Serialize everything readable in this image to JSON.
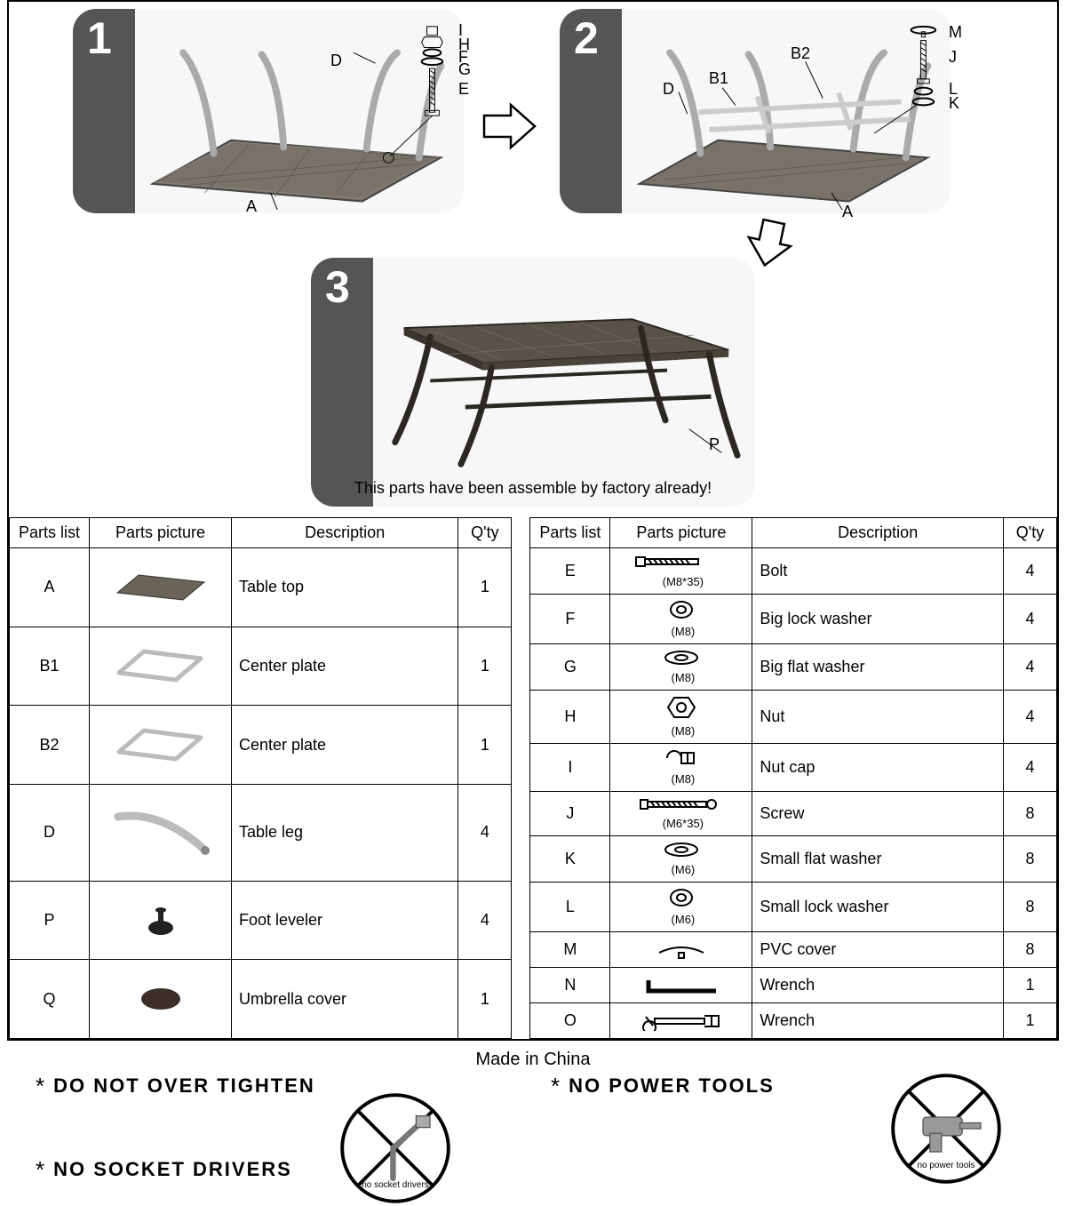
{
  "colors": {
    "border": "#000000",
    "tab": "#555555",
    "panel": "#f7f7f7",
    "tabletop": "#6b6258",
    "metal": "#bfbfbf",
    "dark": "#3b352f"
  },
  "steps": {
    "s1": {
      "num": "1",
      "labels": {
        "A": "A",
        "D": "D",
        "E": "E",
        "F": "F",
        "G": "G",
        "H": "H",
        "I": "I"
      }
    },
    "s2": {
      "num": "2",
      "labels": {
        "A": "A",
        "D": "D",
        "B1": "B1",
        "B2": "B2",
        "J": "J",
        "K": "K",
        "L": "L",
        "M": "M"
      }
    },
    "s3": {
      "num": "3",
      "note": "This parts have been assemble by factory already!",
      "labels": {
        "P": "P"
      }
    }
  },
  "headers": {
    "parts_list": "Parts list",
    "picture": "Parts  picture",
    "description": "Description",
    "qty": "Q'ty"
  },
  "left_parts": [
    {
      "id": "A",
      "desc": "Table top",
      "qty": "1",
      "icon": "tabletop"
    },
    {
      "id": "B1",
      "desc": "Center plate",
      "qty": "1",
      "icon": "frame"
    },
    {
      "id": "B2",
      "desc": "Center plate",
      "qty": "1",
      "icon": "frame"
    },
    {
      "id": "D",
      "desc": "Table leg",
      "qty": "4",
      "icon": "leg",
      "tall": true
    },
    {
      "id": "P",
      "desc": "Foot leveler",
      "qty": "4",
      "icon": "leveler"
    },
    {
      "id": "Q",
      "desc": "Umbrella cover",
      "qty": "1",
      "icon": "oval"
    }
  ],
  "right_parts": [
    {
      "id": "E",
      "spec": "(M8*35)",
      "desc": "Bolt",
      "qty": "4",
      "icon": "bolt"
    },
    {
      "id": "F",
      "spec": "(M8)",
      "desc": "Big lock washer",
      "qty": "4",
      "icon": "ring"
    },
    {
      "id": "G",
      "spec": "(M8)",
      "desc": "Big flat washer",
      "qty": "4",
      "icon": "flatwasher"
    },
    {
      "id": "H",
      "spec": "(M8)",
      "desc": "Nut",
      "qty": "4",
      "icon": "nut"
    },
    {
      "id": "I",
      "spec": "(M8)",
      "desc": "Nut cap",
      "qty": "4",
      "icon": "nutcap"
    },
    {
      "id": "J",
      "spec": "(M6*35)",
      "desc": "Screw",
      "qty": "8",
      "icon": "screw"
    },
    {
      "id": "K",
      "spec": "(M6)",
      "desc": "Small flat washer",
      "qty": "8",
      "icon": "flatwasher"
    },
    {
      "id": "L",
      "spec": "(M6)",
      "desc": "Small lock washer",
      "qty": "8",
      "icon": "ring"
    },
    {
      "id": "M",
      "spec": "",
      "desc": "PVC cover",
      "qty": "8",
      "icon": "pvccover"
    },
    {
      "id": "N",
      "spec": "",
      "desc": "Wrench",
      "qty": "1",
      "icon": "allen"
    },
    {
      "id": "O",
      "spec": "",
      "desc": "Wrench",
      "qty": "1",
      "icon": "spanner"
    }
  ],
  "footer": {
    "made_in": "Made   in   China",
    "warn1": "DO  NOT  OVER  TIGHTEN",
    "warn2": "NO  POWER  TOOLS",
    "warn3": "NO  SOCKET  DRIVERS",
    "noc1_label": "no socket drivers",
    "noc2_label": "no power tools"
  }
}
